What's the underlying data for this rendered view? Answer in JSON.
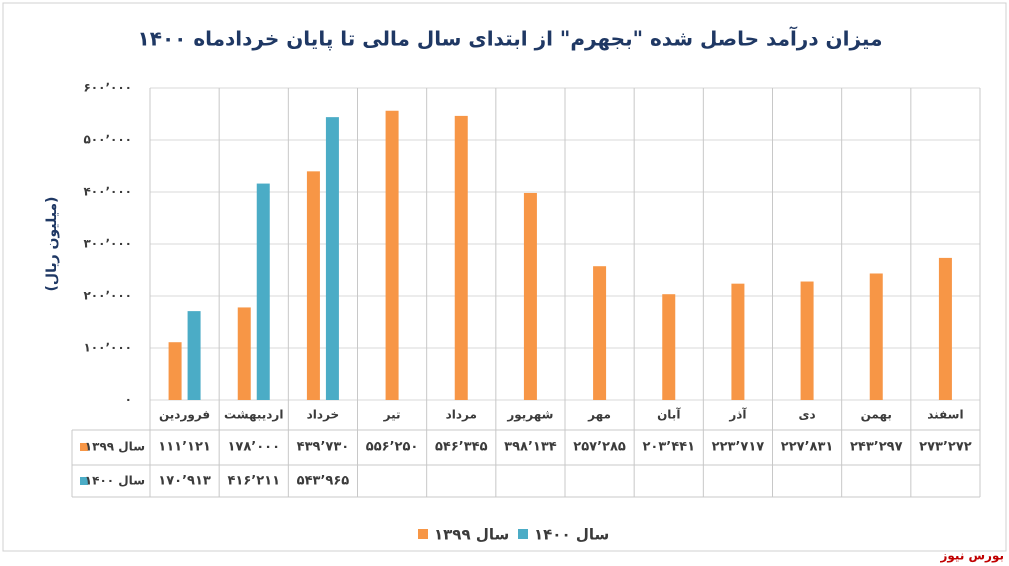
{
  "chart_data": {
    "type": "bar",
    "title": "میزان درآمد حاصل شده \"بجهرم\" از ابتدای سال مالی تا پایان خردادماه ۱۴۰۰",
    "y_label": "(میلیون ریال)",
    "source": "بورس نیوز",
    "categories": [
      "فروردین",
      "اردیبهشت",
      "خرداد",
      "تیر",
      "مرداد",
      "شهریور",
      "مهر",
      "آبان",
      "آذر",
      "دی",
      "بهمن",
      "اسفند"
    ],
    "series": [
      {
        "name": "سال ۱۳۹۹",
        "color": "#f79646",
        "values": [
          111121,
          178000,
          439730,
          556250,
          546345,
          398134,
          257285,
          203441,
          223717,
          227831,
          243297,
          273272
        ],
        "value_labels": [
          "۱۱۱٬۱۲۱",
          "۱۷۸٬۰۰۰",
          "۴۳۹٬۷۳۰",
          "۵۵۶٬۲۵۰",
          "۵۴۶٬۳۴۵",
          "۳۹۸٬۱۳۴",
          "۲۵۷٬۲۸۵",
          "۲۰۳٬۴۴۱",
          "۲۲۳٬۷۱۷",
          "۲۲۷٬۸۳۱",
          "۲۴۳٬۲۹۷",
          "۲۷۳٬۲۷۲"
        ]
      },
      {
        "name": "سال ۱۴۰۰",
        "color": "#4bacc6",
        "values": [
          170913,
          416211,
          543965,
          null,
          null,
          null,
          null,
          null,
          null,
          null,
          null,
          null
        ],
        "value_labels": [
          "۱۷۰٬۹۱۳",
          "۴۱۶٬۲۱۱",
          "۵۴۳٬۹۶۵",
          null,
          null,
          null,
          null,
          null,
          null,
          null,
          null,
          null
        ]
      }
    ],
    "ylim": [
      0,
      600000
    ],
    "yticks": [
      {
        "value": 0,
        "label": "۰"
      },
      {
        "value": 100000,
        "label": "۱۰۰٬۰۰۰"
      },
      {
        "value": 200000,
        "label": "۲۰۰٬۰۰۰"
      },
      {
        "value": 300000,
        "label": "۳۰۰٬۰۰۰"
      },
      {
        "value": 400000,
        "label": "۴۰۰٬۰۰۰"
      },
      {
        "value": 500000,
        "label": "۵۰۰٬۰۰۰"
      },
      {
        "value": 600000,
        "label": "۶۰۰٬۰۰۰"
      }
    ],
    "grid": true
  }
}
